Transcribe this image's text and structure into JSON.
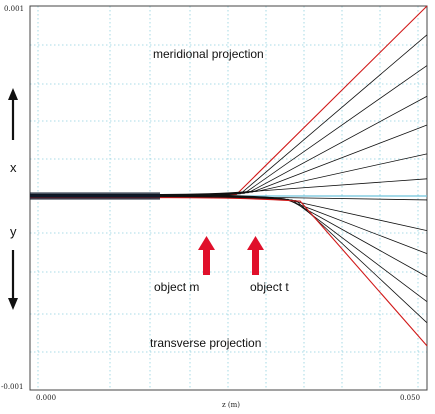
{
  "plot": {
    "y_top_tick": "0.001",
    "y_bottom_tick": "-0.001",
    "x_left_tick": "0.000",
    "x_right_tick": "0.050",
    "x_axis_label": "z (m)",
    "label_x": "x",
    "label_y": "y",
    "meridional_label": "meridional projection",
    "transverse_label": "transverse projection",
    "object_m_label": "object  m",
    "object_t_label": "object t"
  },
  "colors": {
    "grid": "#8fd0df",
    "axis_line": "#6fc4dc",
    "ray": "#111111",
    "marginal_ray": "#d11a1a",
    "arrow": "#e0102b",
    "frame": "#444444"
  },
  "icons": {
    "up_arrow": "arrow-up-icon",
    "down_arrow": "arrow-down-icon"
  },
  "chart_data": {
    "type": "line",
    "x_range": [
      0.0,
      0.05
    ],
    "y_range": [
      -0.001,
      0.001
    ],
    "meridional_ray_end_values": [
      0.001,
      0.00085,
      0.00069,
      0.00053,
      0.00038,
      0.00023,
      0.0001
    ],
    "meridional_focus_z": 0.027,
    "transverse_ray_end_values": [
      -1e-05,
      -0.00017,
      -0.00029,
      -0.00041,
      -0.00054,
      -0.00065,
      -0.00077
    ],
    "transverse_focus_z": 0.032
  }
}
